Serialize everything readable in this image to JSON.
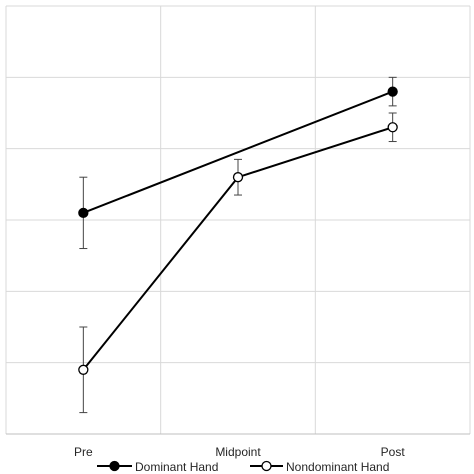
{
  "chart_data": {
    "type": "line",
    "categories": [
      "Pre",
      "Midpoint",
      "Post"
    ],
    "ylim": [
      0,
      6
    ],
    "grid": true,
    "legend_position": "bottom",
    "series": [
      {
        "name": "Dominant Hand",
        "values": [
          3.1,
          null,
          4.8
        ],
        "error": [
          0.5,
          null,
          0.2
        ],
        "marker": "filled-circle",
        "color": "#000000"
      },
      {
        "name": "Nondominant Hand",
        "values": [
          0.9,
          3.6,
          4.3
        ],
        "error": [
          0.6,
          0.25,
          0.2
        ],
        "marker": "open-circle",
        "color": "#000000"
      }
    ]
  }
}
